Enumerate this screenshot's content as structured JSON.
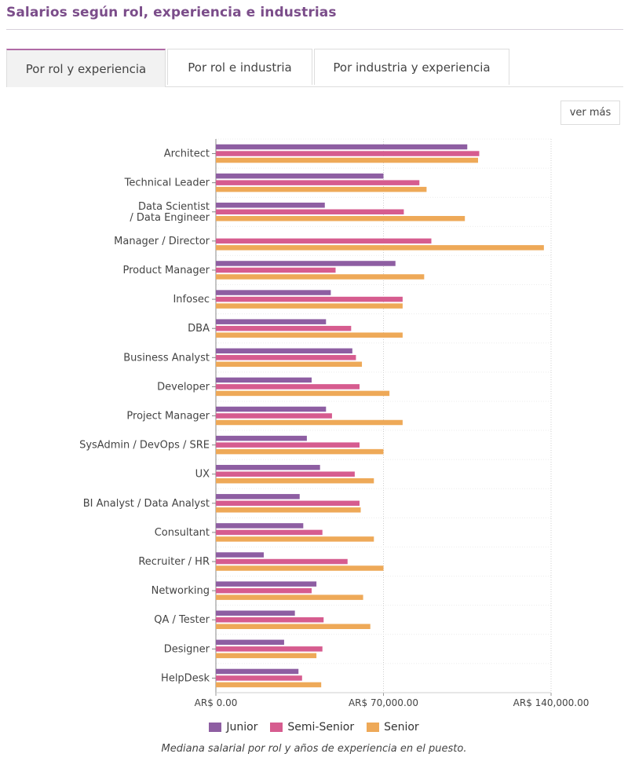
{
  "header": {
    "title": "Salarios según rol, experiencia e industrias"
  },
  "tabs": [
    {
      "label": "Por rol y experiencia",
      "active": true
    },
    {
      "label": "Por rol e industria",
      "active": false
    },
    {
      "label": "Por industria y experiencia",
      "active": false
    }
  ],
  "ver_mas_label": "ver más",
  "caption": "Mediana salarial por rol y años de experiencia en el puesto.",
  "colors": {
    "junior": "#8e5ea2",
    "semi_senior": "#d65c8f",
    "senior": "#eea958",
    "accent": "#7b4d8a"
  },
  "chart_data": {
    "type": "bar",
    "orientation": "horizontal",
    "categories": [
      "Architect",
      "Technical Leader",
      "Data Scientist / Data Engineer",
      "Manager / Director",
      "Product Manager",
      "Infosec",
      "DBA",
      "Business Analyst",
      "Developer",
      "Project Manager",
      "SysAdmin / DevOps / SRE",
      "UX",
      "BI Analyst / Data Analyst",
      "Consultant",
      "Recruiter / HR",
      "Networking",
      "QA / Tester",
      "Designer",
      "HelpDesk"
    ],
    "series": [
      {
        "name": "Junior",
        "color": "#8e5ea2",
        "values": [
          105000,
          70000,
          45500,
          null,
          75000,
          48000,
          46000,
          57000,
          40000,
          46000,
          38000,
          43500,
          35000,
          36500,
          20000,
          42000,
          33000,
          28500,
          34500
        ]
      },
      {
        "name": "Semi-Senior",
        "color": "#d65c8f",
        "values": [
          110000,
          85000,
          78500,
          90000,
          50000,
          78000,
          56500,
          58500,
          60000,
          48500,
          60000,
          58000,
          60000,
          44500,
          55000,
          40000,
          45000,
          44500,
          36000
        ]
      },
      {
        "name": "Senior",
        "color": "#eea958",
        "values": [
          109500,
          88000,
          104000,
          137000,
          87000,
          78000,
          78000,
          61000,
          72500,
          78000,
          70000,
          66000,
          60500,
          66000,
          70000,
          61500,
          64500,
          42000,
          44000
        ]
      }
    ],
    "x_ticks": [
      {
        "value": 0,
        "label": "AR$ 0.00"
      },
      {
        "value": 70000,
        "label": "AR$ 70,000.00"
      },
      {
        "value": 140000,
        "label": "AR$ 140,000.00"
      }
    ],
    "xlim": [
      0,
      140000
    ],
    "grid": true,
    "legend_position": "bottom"
  }
}
